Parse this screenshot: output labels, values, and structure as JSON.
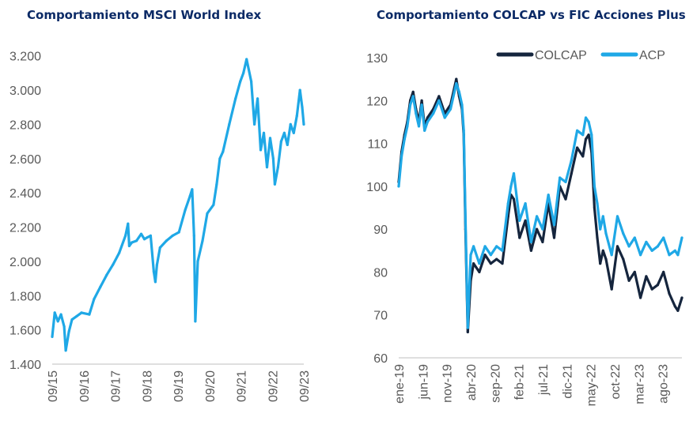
{
  "chart_data": [
    {
      "type": "line",
      "title": "Comportamiento MSCI World Index",
      "xlabel": "",
      "ylabel": "",
      "ylim": [
        1400,
        3300
      ],
      "yticks": [
        1400,
        1600,
        1800,
        2000,
        2200,
        2400,
        2600,
        2800,
        3000,
        3200
      ],
      "ytick_labels": [
        "1.400",
        "1.600",
        "1.800",
        "2.000",
        "2.200",
        "2.400",
        "2.600",
        "2.800",
        "3.000",
        "3.200"
      ],
      "xlim": [
        2015.67,
        2023.67
      ],
      "xticks": [
        2015.67,
        2016.67,
        2017.67,
        2018.67,
        2019.67,
        2020.67,
        2021.67,
        2022.67,
        2023.67
      ],
      "xtick_labels": [
        "09/15",
        "09/16",
        "09/17",
        "09/18",
        "09/19",
        "09/20",
        "09/21",
        "09/22",
        "09/23"
      ],
      "grid": false,
      "legend": "none",
      "series": [
        {
          "color": "#1fa8e6",
          "x": [
            2015.67,
            2015.75,
            2015.85,
            2015.95,
            2016.05,
            2016.1,
            2016.2,
            2016.3,
            2016.45,
            2016.6,
            2016.85,
            2017.0,
            2017.2,
            2017.4,
            2017.6,
            2017.8,
            2018.0,
            2018.08,
            2018.12,
            2018.2,
            2018.35,
            2018.5,
            2018.6,
            2018.7,
            2018.8,
            2018.9,
            2018.95,
            2019.0,
            2019.1,
            2019.3,
            2019.5,
            2019.7,
            2019.9,
            2020.05,
            2020.12,
            2020.18,
            2020.22,
            2020.3,
            2020.45,
            2020.6,
            2020.8,
            2020.9,
            2021.0,
            2021.1,
            2021.3,
            2021.5,
            2021.65,
            2021.75,
            2021.85,
            2022.0,
            2022.1,
            2022.2,
            2022.3,
            2022.4,
            2022.5,
            2022.6,
            2022.7,
            2022.75,
            2022.85,
            2022.95,
            2023.05,
            2023.15,
            2023.25,
            2023.35,
            2023.45,
            2023.55,
            2023.62,
            2023.67
          ],
          "y": [
            1560,
            1700,
            1650,
            1690,
            1620,
            1480,
            1590,
            1660,
            1680,
            1700,
            1690,
            1780,
            1850,
            1920,
            1980,
            2050,
            2150,
            2220,
            2090,
            2110,
            2120,
            2160,
            2130,
            2140,
            2150,
            1940,
            1880,
            1980,
            2080,
            2120,
            2150,
            2170,
            2300,
            2380,
            2420,
            2150,
            1650,
            2000,
            2120,
            2280,
            2330,
            2450,
            2600,
            2640,
            2800,
            2950,
            3050,
            3100,
            3180,
            3050,
            2800,
            2950,
            2650,
            2750,
            2550,
            2720,
            2600,
            2450,
            2550,
            2700,
            2750,
            2680,
            2800,
            2750,
            2850,
            3000,
            2900,
            2800
          ]
        }
      ]
    },
    {
      "type": "line",
      "title": "Comportamiento COLCAP vs FIC Acciones Plus",
      "xlabel": "",
      "ylabel": "",
      "ylim": [
        60,
        130
      ],
      "yticks": [
        60,
        70,
        80,
        90,
        100,
        110,
        120,
        130
      ],
      "ytick_labels": [
        "60",
        "70",
        "80",
        "90",
        "100",
        "110",
        "120",
        "130"
      ],
      "xlim": [
        2019.0,
        2023.92
      ],
      "xticks": [
        2019.0,
        2019.42,
        2019.83,
        2020.25,
        2020.67,
        2021.08,
        2021.5,
        2021.92,
        2022.33,
        2022.75,
        2023.17,
        2023.58
      ],
      "xtick_labels": [
        "ene-19",
        "jun-19",
        "nov-19",
        "abr-20",
        "sep-20",
        "feb-21",
        "jul-21",
        "dic-21",
        "may-22",
        "oct-22",
        "mar-23",
        "ago-23"
      ],
      "grid": false,
      "legend": "top-right",
      "series": [
        {
          "name": "COLCAP",
          "color": "#15253d",
          "x": [
            2019.0,
            2019.05,
            2019.1,
            2019.15,
            2019.2,
            2019.25,
            2019.3,
            2019.35,
            2019.4,
            2019.45,
            2019.5,
            2019.6,
            2019.7,
            2019.8,
            2019.9,
            2020.0,
            2020.05,
            2020.1,
            2020.13,
            2020.16,
            2020.2,
            2020.25,
            2020.3,
            2020.4,
            2020.5,
            2020.6,
            2020.7,
            2020.8,
            2020.9,
            2020.95,
            2021.0,
            2021.1,
            2021.2,
            2021.3,
            2021.4,
            2021.5,
            2021.6,
            2021.7,
            2021.8,
            2021.9,
            2022.0,
            2022.1,
            2022.2,
            2022.25,
            2022.3,
            2022.35,
            2022.4,
            2022.45,
            2022.5,
            2022.55,
            2022.6,
            2022.7,
            2022.8,
            2022.9,
            2023.0,
            2023.1,
            2023.2,
            2023.3,
            2023.4,
            2023.5,
            2023.6,
            2023.7,
            2023.8,
            2023.85,
            2023.92
          ],
          "y": [
            101,
            108,
            112,
            115,
            120,
            122,
            118,
            115,
            120,
            114,
            116,
            118,
            121,
            117,
            119,
            125,
            121,
            118,
            112,
            90,
            66,
            78,
            82,
            80,
            84,
            82,
            83,
            82,
            93,
            98,
            97,
            88,
            92,
            85,
            90,
            87,
            96,
            88,
            100,
            97,
            103,
            109,
            107,
            111,
            112,
            108,
            95,
            88,
            82,
            85,
            83,
            76,
            86,
            83,
            78,
            80,
            74,
            79,
            76,
            77,
            80,
            75,
            72,
            71,
            74
          ]
        },
        {
          "name": "ACP",
          "color": "#1fa8e6",
          "x": [
            2019.0,
            2019.05,
            2019.1,
            2019.15,
            2019.2,
            2019.25,
            2019.3,
            2019.35,
            2019.4,
            2019.45,
            2019.5,
            2019.6,
            2019.7,
            2019.8,
            2019.9,
            2020.0,
            2020.05,
            2020.1,
            2020.13,
            2020.16,
            2020.2,
            2020.25,
            2020.3,
            2020.4,
            2020.5,
            2020.6,
            2020.7,
            2020.8,
            2020.9,
            2020.95,
            2021.0,
            2021.1,
            2021.2,
            2021.3,
            2021.4,
            2021.5,
            2021.6,
            2021.7,
            2021.8,
            2021.9,
            2022.0,
            2022.1,
            2022.2,
            2022.25,
            2022.3,
            2022.35,
            2022.4,
            2022.45,
            2022.5,
            2022.55,
            2022.6,
            2022.7,
            2022.8,
            2022.9,
            2023.0,
            2023.1,
            2023.2,
            2023.3,
            2023.4,
            2023.5,
            2023.6,
            2023.7,
            2023.8,
            2023.85,
            2023.92
          ],
          "y": [
            100,
            107,
            111,
            114,
            119,
            121,
            117,
            114,
            119,
            113,
            115,
            117,
            120,
            116,
            118,
            124,
            122,
            119,
            113,
            92,
            67,
            84,
            86,
            82,
            86,
            84,
            86,
            85,
            96,
            100,
            103,
            92,
            96,
            87,
            93,
            90,
            98,
            91,
            102,
            101,
            106,
            113,
            112,
            116,
            115,
            112,
            100,
            96,
            90,
            93,
            89,
            84,
            93,
            89,
            86,
            88,
            84,
            87,
            85,
            86,
            88,
            84,
            85,
            84,
            88
          ]
        }
      ]
    }
  ]
}
